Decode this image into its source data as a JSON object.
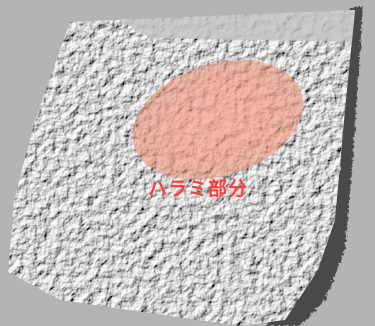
{
  "colors": {
    "background": "#b4b4b4",
    "surface": "#cfcfcf",
    "surface_shadow": "#5e5e5e",
    "highlight": "#f0a088",
    "label": "#ff3b3b"
  },
  "label": {
    "text": "ハラミ部分"
  }
}
